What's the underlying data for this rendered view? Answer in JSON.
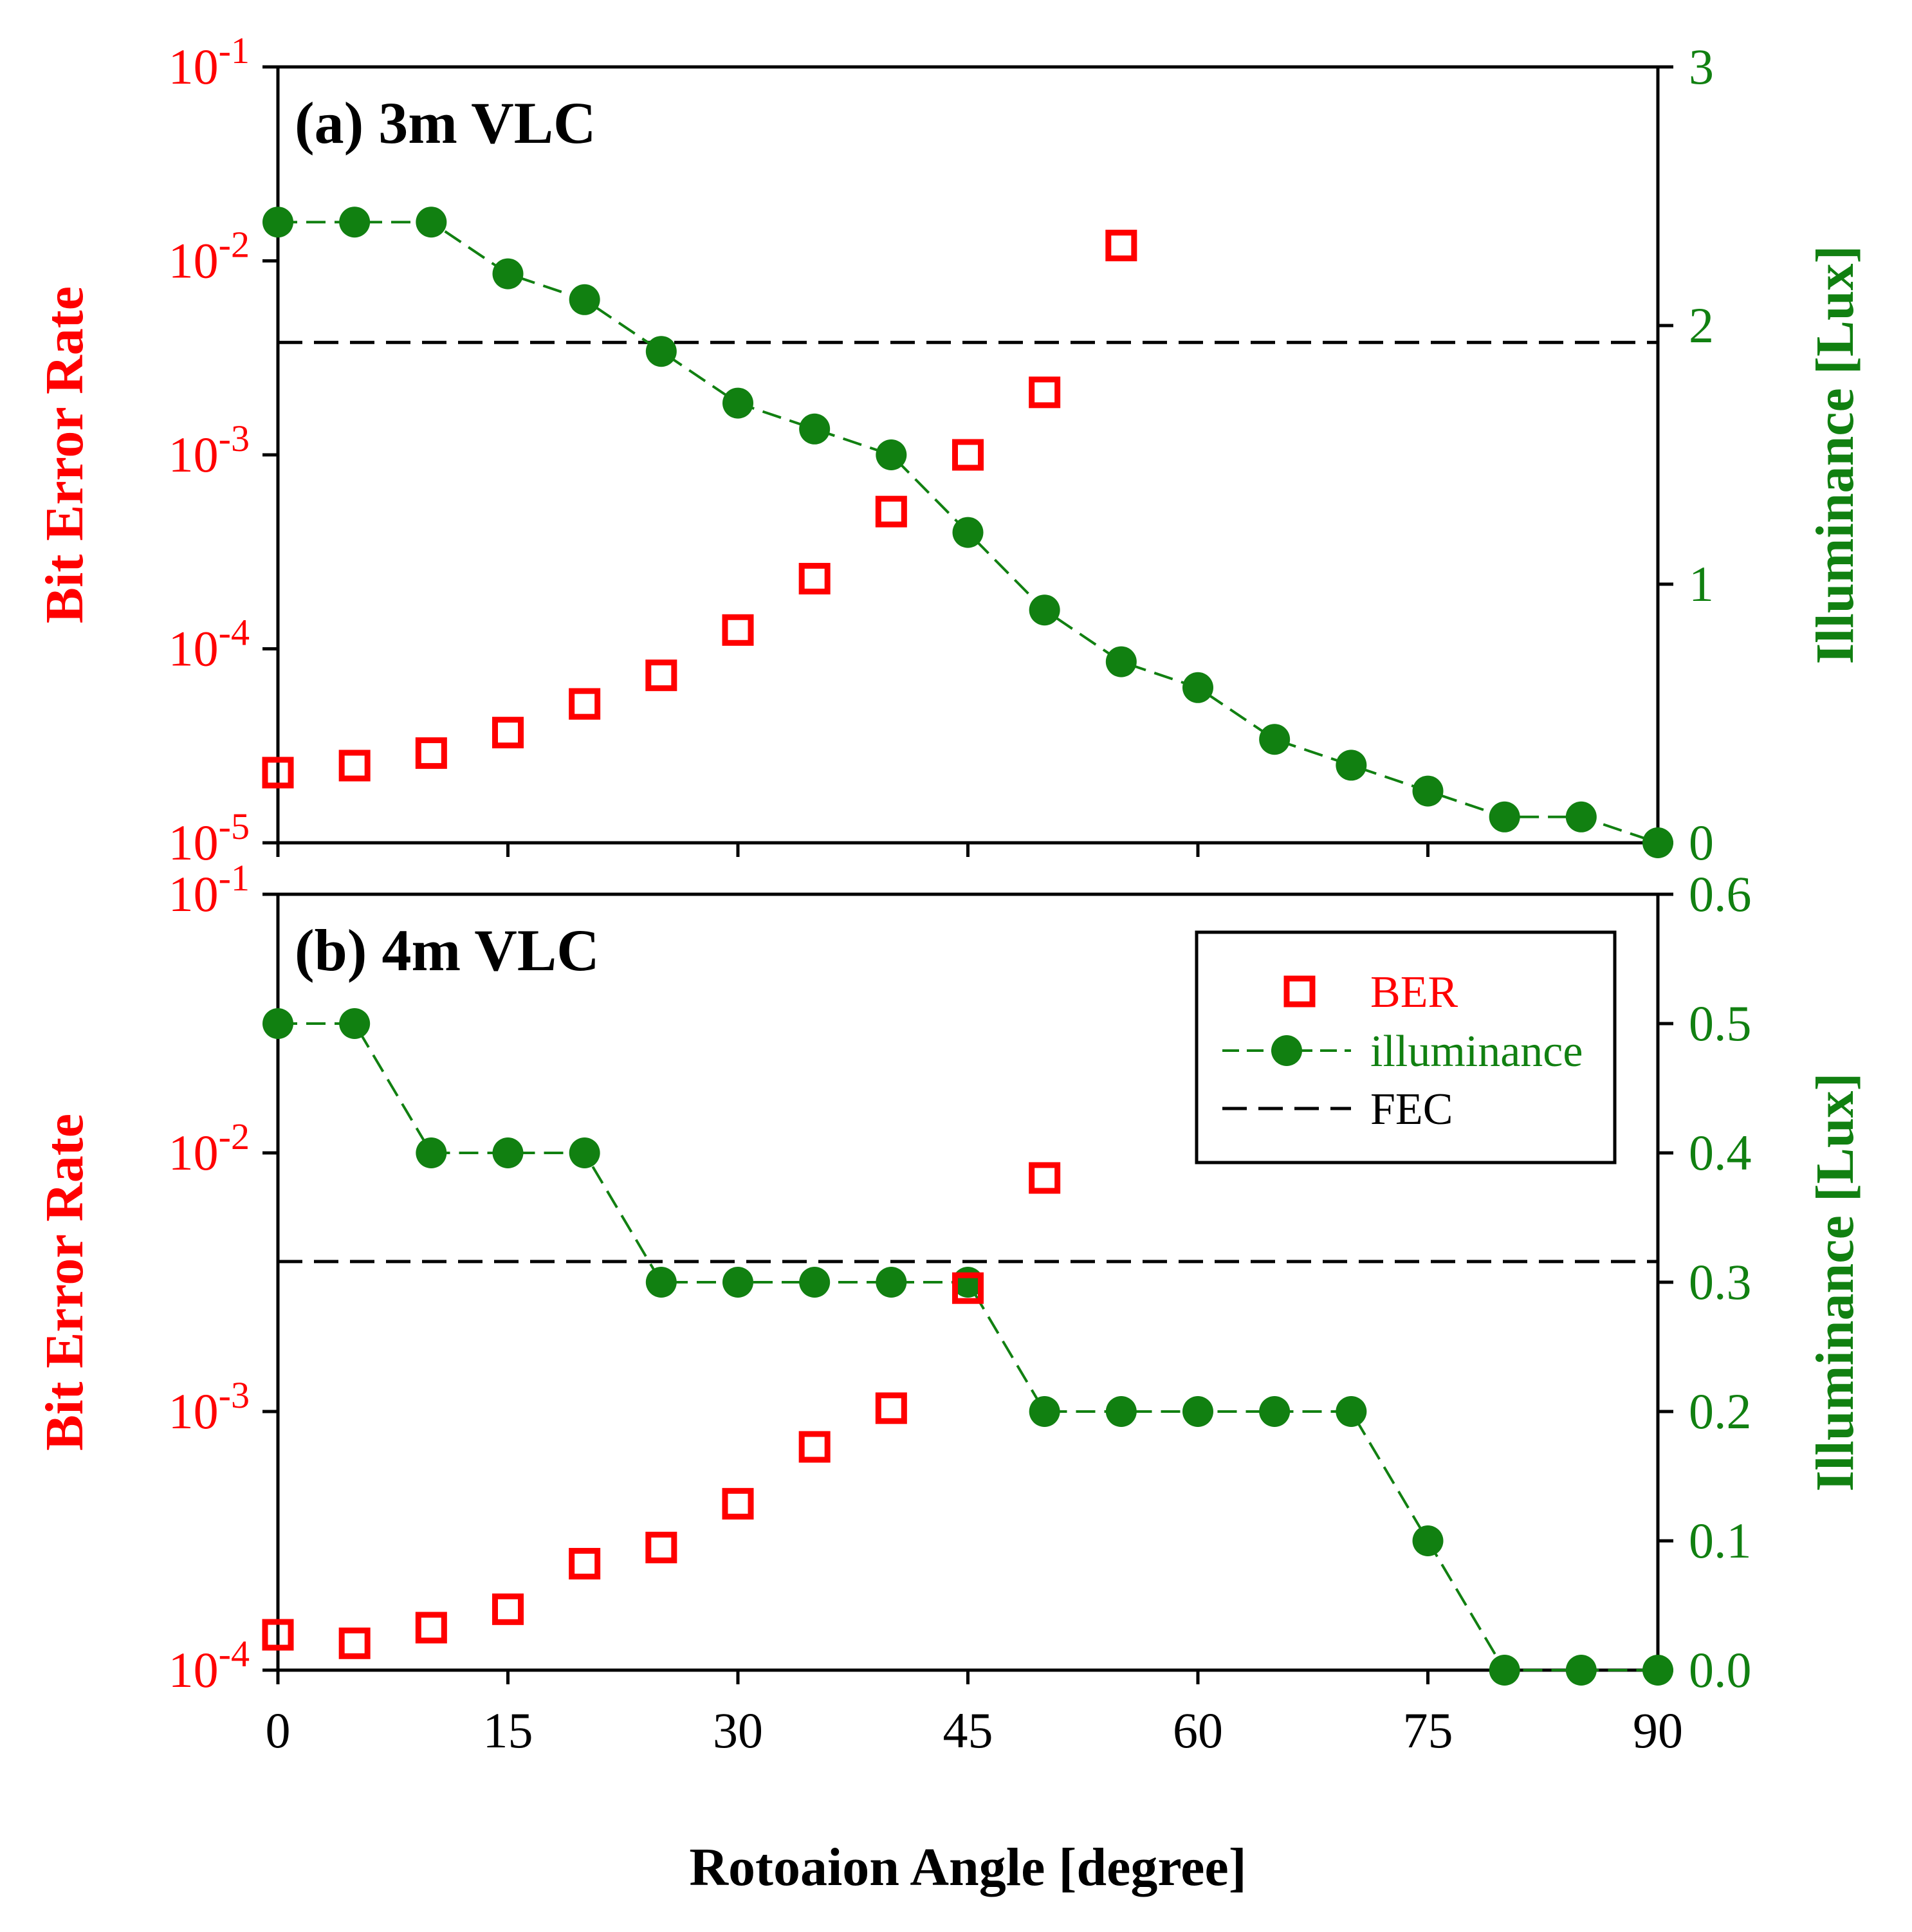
{
  "colors": {
    "ber": "#ff0000",
    "illuminance": "#118011",
    "fec": "#000000",
    "axis": "#000000"
  },
  "chart_data": [
    {
      "type": "scatter+line",
      "title": "(a) 3m VLC",
      "xlabel": "",
      "ylabel_left": "Bit Error Rate",
      "ylabel_right": "Illuminance [Lux]",
      "xlim": [
        0,
        90
      ],
      "ylim_left_log10": [
        -5,
        -1
      ],
      "ylim_right": [
        0,
        3
      ],
      "yticks_right": [
        0,
        1,
        2,
        3
      ],
      "yticks_right_labels": [
        "0",
        "1",
        "2",
        "3"
      ],
      "fec_threshold": 0.0038,
      "series": [
        {
          "name": "BER",
          "axis": "left",
          "x": [
            0,
            5,
            10,
            15,
            20,
            25,
            30,
            35,
            40,
            45,
            50,
            55
          ],
          "values": [
            2.3e-05,
            2.5e-05,
            2.9e-05,
            3.7e-05,
            5.2e-05,
            7.3e-05,
            0.000125,
            0.00023,
            0.00051,
            0.001,
            0.0021,
            0.012
          ]
        },
        {
          "name": "illuminance",
          "axis": "right",
          "x": [
            0,
            5,
            10,
            15,
            20,
            25,
            30,
            35,
            40,
            45,
            50,
            55,
            60,
            65,
            70,
            75,
            80,
            85,
            90
          ],
          "values": [
            2.4,
            2.4,
            2.4,
            2.2,
            2.1,
            1.9,
            1.7,
            1.6,
            1.5,
            1.2,
            0.9,
            0.7,
            0.6,
            0.4,
            0.3,
            0.2,
            0.1,
            0.1,
            0.0
          ]
        }
      ]
    },
    {
      "type": "scatter+line",
      "title": "(b) 4m VLC",
      "xlabel": "Rotoaion Angle [degree]",
      "ylabel_left": "Bit Error Rate",
      "ylabel_right": "Illuminance [Lux]",
      "xlim": [
        0,
        90
      ],
      "xticks": [
        0,
        15,
        30,
        45,
        60,
        75,
        90
      ],
      "xtick_labels": [
        "0",
        "15",
        "30",
        "45",
        "60",
        "75",
        "90"
      ],
      "ylim_left_log10": [
        -4,
        -1
      ],
      "ylim_right": [
        0,
        0.6
      ],
      "yticks_right": [
        0,
        0.1,
        0.2,
        0.3,
        0.4,
        0.5,
        0.6
      ],
      "yticks_right_labels": [
        "0.0",
        "0.1",
        "0.2",
        "0.3",
        "0.4",
        "0.5",
        "0.6"
      ],
      "fec_threshold": 0.0038,
      "legend": {
        "placement": "top-right",
        "entries": [
          "BER",
          "illuminance",
          "FEC"
        ]
      },
      "series": [
        {
          "name": "BER",
          "axis": "left",
          "x": [
            0,
            5,
            10,
            15,
            20,
            25,
            30,
            35,
            40,
            45,
            50
          ],
          "values": [
            0.000137,
            0.000127,
            0.000146,
            0.000172,
            0.000258,
            0.000298,
            0.00044,
            0.00073,
            0.00103,
            0.003,
            0.008
          ]
        },
        {
          "name": "illuminance",
          "axis": "right",
          "x": [
            0,
            5,
            10,
            15,
            20,
            25,
            30,
            35,
            40,
            45,
            50,
            55,
            60,
            65,
            70,
            75,
            80,
            85,
            90
          ],
          "values": [
            0.5,
            0.5,
            0.4,
            0.4,
            0.4,
            0.3,
            0.3,
            0.3,
            0.3,
            0.3,
            0.2,
            0.2,
            0.2,
            0.2,
            0.2,
            0.1,
            0.0,
            0.0,
            0.0
          ]
        }
      ]
    }
  ]
}
